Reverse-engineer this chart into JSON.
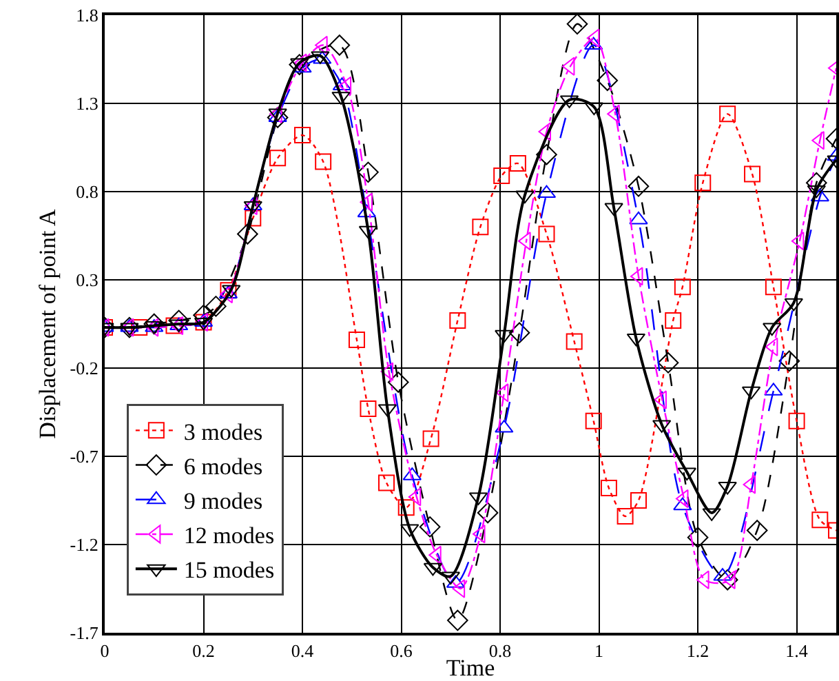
{
  "chart_data": {
    "type": "line",
    "xlabel": "Time",
    "ylabel": "Displacement of point A",
    "xlim": [
      0,
      1.48
    ],
    "xticks": [
      0,
      0.2,
      0.4,
      0.6,
      0.8,
      1,
      1.2,
      1.4
    ],
    "ylim": [
      -1.7,
      1.8
    ],
    "yticks": [
      1.8,
      1.3,
      0.8,
      0.3,
      -0.2,
      -0.7,
      -1.2,
      -1.7
    ],
    "grid": true,
    "legend": "bottom left",
    "series": [
      {
        "name": "3 modes",
        "color": "#ff0000",
        "marker": "square",
        "line_style": "dotted",
        "x": [
          0,
          0.07,
          0.14,
          0.2,
          0.25,
          0.3,
          0.35,
          0.4,
          0.442,
          0.51,
          0.533,
          0.57,
          0.61,
          0.66,
          0.714,
          0.76,
          0.803,
          0.836,
          0.894,
          0.95,
          0.989,
          1.02,
          1.053,
          1.08,
          1.15,
          1.169,
          1.21,
          1.26,
          1.31,
          1.353,
          1.4,
          1.447,
          1.48
        ],
        "values": [
          0.03,
          0.03,
          0.04,
          0.06,
          0.24,
          0.65,
          0.99,
          1.12,
          0.97,
          -0.04,
          -0.43,
          -0.85,
          -0.99,
          -0.6,
          0.07,
          0.6,
          0.89,
          0.96,
          0.56,
          -0.05,
          -0.5,
          -0.88,
          -1.04,
          -0.95,
          0.07,
          0.26,
          0.85,
          1.24,
          0.9,
          0.26,
          -0.5,
          -1.06,
          -1.12
        ]
      },
      {
        "name": "6 modes",
        "color": "#000000",
        "marker": "diamond",
        "line_style": "dashed",
        "x": [
          0,
          0.05,
          0.1,
          0.15,
          0.2,
          0.225,
          0.289,
          0.35,
          0.394,
          0.475,
          0.533,
          0.594,
          0.658,
          0.714,
          0.775,
          0.839,
          0.894,
          0.956,
          1.017,
          1.08,
          1.14,
          1.2,
          1.26,
          1.32,
          1.385,
          1.44,
          1.48
        ],
        "values": [
          0.03,
          0.03,
          0.05,
          0.07,
          0.1,
          0.15,
          0.56,
          1.22,
          1.52,
          1.63,
          0.91,
          -0.28,
          -1.1,
          -1.63,
          -1.02,
          0,
          1.01,
          1.75,
          1.43,
          0.83,
          -0.17,
          -1.16,
          -1.4,
          -1.12,
          -0.16,
          0.85,
          1.1
        ]
      },
      {
        "name": "9 modes",
        "color": "#0000ff",
        "marker": "triangle-up",
        "line_style": "longdash",
        "x": [
          0,
          0.05,
          0.1,
          0.15,
          0.2,
          0.25,
          0.3,
          0.35,
          0.4,
          0.44,
          0.48,
          0.53,
          0.622,
          0.71,
          0.808,
          0.894,
          0.989,
          1.08,
          1.169,
          1.25,
          1.353,
          1.447,
          1.48
        ],
        "values": [
          0.03,
          0.03,
          0.03,
          0.04,
          0.06,
          0.22,
          0.72,
          1.22,
          1.5,
          1.55,
          1.4,
          0.68,
          -0.81,
          -1.42,
          -0.54,
          0.79,
          1.63,
          0.64,
          -0.98,
          -1.38,
          -0.33,
          0.77,
          1.0
        ]
      },
      {
        "name": "12 modes",
        "color": "#ff00ff",
        "marker": "triangle-left",
        "line_style": "dashdot",
        "x": [
          0,
          0.05,
          0.1,
          0.15,
          0.2,
          0.25,
          0.3,
          0.35,
          0.4,
          0.442,
          0.49,
          0.533,
          0.575,
          0.631,
          0.672,
          0.72,
          0.761,
          0.808,
          0.853,
          0.894,
          0.942,
          0.992,
          1.033,
          1.08,
          1.128,
          1.172,
          1.214,
          1.267,
          1.308,
          1.353,
          1.406,
          1.447,
          1.48
        ],
        "values": [
          0.03,
          0.03,
          0.03,
          0.04,
          0.06,
          0.22,
          0.72,
          1.24,
          1.53,
          1.63,
          1.4,
          0.74,
          -0.22,
          -0.93,
          -1.26,
          -1.45,
          -1.14,
          -0.34,
          0.52,
          1.14,
          1.51,
          1.67,
          1.24,
          0.32,
          -0.38,
          -0.94,
          -1.4,
          -1.4,
          -0.86,
          -0.08,
          0.52,
          1.09,
          1.5
        ]
      },
      {
        "name": "15 modes",
        "color": "#000000",
        "marker": "triangle-down",
        "line_style": "solid",
        "x": [
          0,
          0.05,
          0.1,
          0.15,
          0.2,
          0.256,
          0.3,
          0.35,
          0.394,
          0.436,
          0.478,
          0.533,
          0.572,
          0.617,
          0.664,
          0.7,
          0.756,
          0.808,
          0.85,
          0.94,
          0.99,
          1.03,
          1.075,
          1.127,
          1.178,
          1.228,
          1.26,
          1.308,
          1.35,
          1.394,
          1.44,
          1.48
        ],
        "values": [
          0.03,
          0.03,
          0.04,
          0.05,
          0.06,
          0.245,
          0.72,
          1.245,
          1.53,
          1.57,
          1.34,
          0.58,
          -0.43,
          -1.11,
          -1.33,
          -1.38,
          -0.93,
          -0.01,
          0.78,
          1.32,
          1.28,
          0.71,
          -0.03,
          -0.52,
          -0.79,
          -1.02,
          -0.87,
          -0.33,
          0.03,
          0.17,
          0.81,
          0.98
        ]
      }
    ]
  }
}
